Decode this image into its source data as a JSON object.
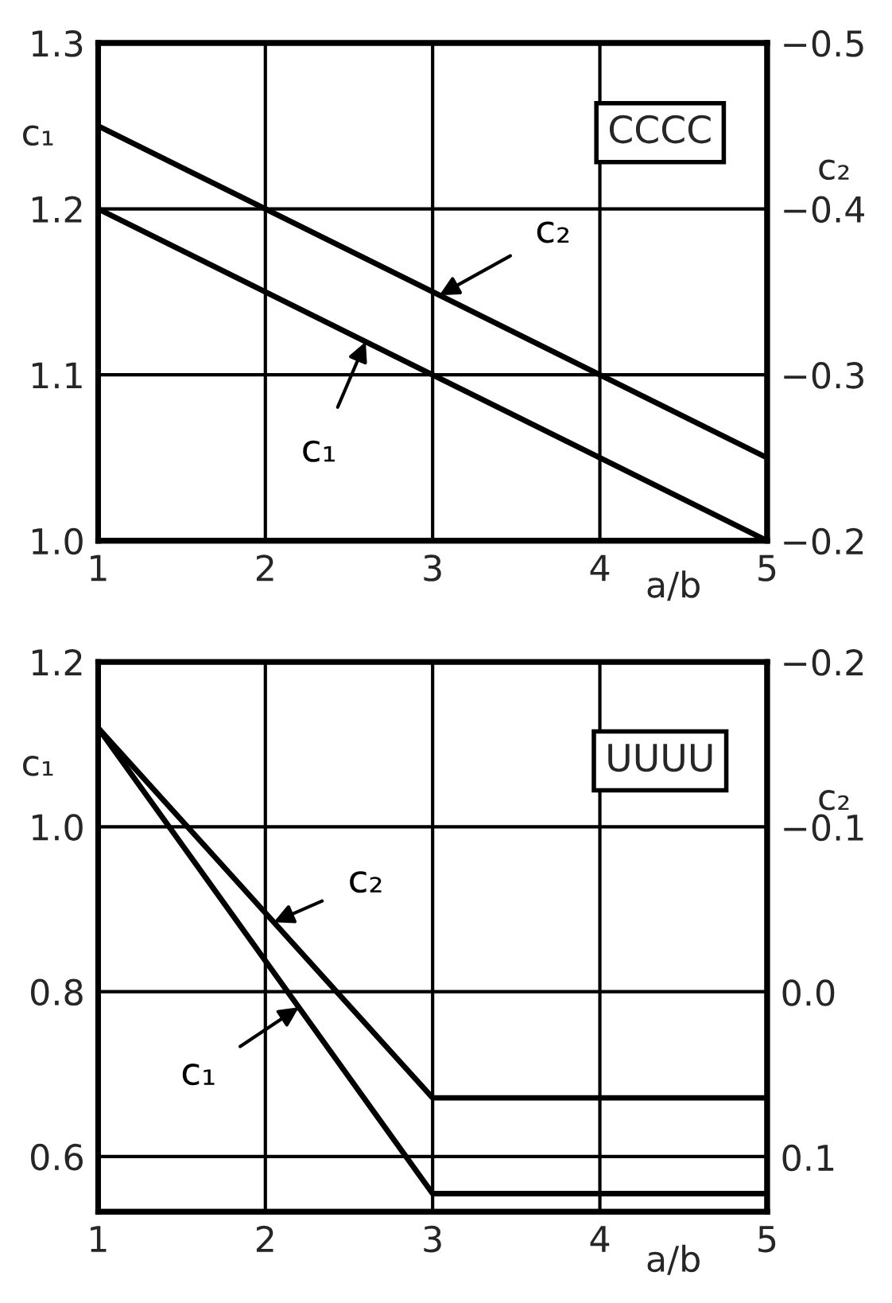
{
  "chart_data": [
    {
      "type": "line",
      "xlabel": "a/b",
      "ylabel": "c₁",
      "y2label": "c₂",
      "annotations": [
        "CCCC"
      ],
      "grid": true,
      "xlim": [
        1,
        5
      ],
      "xticks": [
        1,
        2,
        3,
        4,
        5
      ],
      "ylim": [
        1.0,
        1.3
      ],
      "yticks": [
        {
          "value": 1.0,
          "label": "1.0"
        },
        {
          "value": 1.1,
          "label": "1.1"
        },
        {
          "value": 1.2,
          "label": "1.2"
        },
        {
          "value": 1.3,
          "label": "1.3"
        }
      ],
      "y2lim": [
        -0.2,
        -0.5
      ],
      "y2ticks": [
        {
          "value": -0.2,
          "label": "−0.2"
        },
        {
          "value": -0.3,
          "label": "−0.3"
        },
        {
          "value": -0.4,
          "label": "−0.4"
        },
        {
          "value": -0.5,
          "label": "−0.5"
        }
      ],
      "series": [
        {
          "name": "c₁",
          "color": "#000000",
          "x": [
            1,
            5
          ],
          "values": [
            1.2,
            1.0
          ]
        },
        {
          "name": "c₂",
          "color": "#000000",
          "axis": "y2",
          "x": [
            1,
            5
          ],
          "values": [
            -0.45,
            -0.25
          ]
        }
      ]
    },
    {
      "type": "line",
      "xlabel": "a/b",
      "ylabel": "c₁",
      "y2label": "c₂",
      "annotations": [
        "UUUU"
      ],
      "grid": true,
      "xlim": [
        1,
        5
      ],
      "xticks": [
        1,
        2,
        3,
        4,
        5
      ],
      "ylim": [
        0.533,
        1.2
      ],
      "yticks": [
        {
          "value": 0.6,
          "label": "0.6"
        },
        {
          "value": 0.8,
          "label": "0.8"
        },
        {
          "value": 1.0,
          "label": "1.0"
        },
        {
          "value": 1.2,
          "label": "1.2"
        }
      ],
      "y2lim": [
        0.133,
        -0.2
      ],
      "y2ticks": [
        {
          "value": 0.1,
          "label": "0.1"
        },
        {
          "value": 0.0,
          "label": "0.0"
        },
        {
          "value": -0.1,
          "label": "−0.1"
        },
        {
          "value": -0.2,
          "label": "−0.2"
        }
      ],
      "series": [
        {
          "name": "c₁",
          "color": "#000000",
          "x": [
            1,
            3,
            5
          ],
          "values": [
            1.12,
            0.555,
            0.555
          ]
        },
        {
          "name": "c₂",
          "color": "#000000",
          "axis": "y2",
          "x": [
            1,
            3,
            5
          ],
          "values": [
            -0.16,
            0.064,
            0.064
          ]
        }
      ]
    }
  ]
}
